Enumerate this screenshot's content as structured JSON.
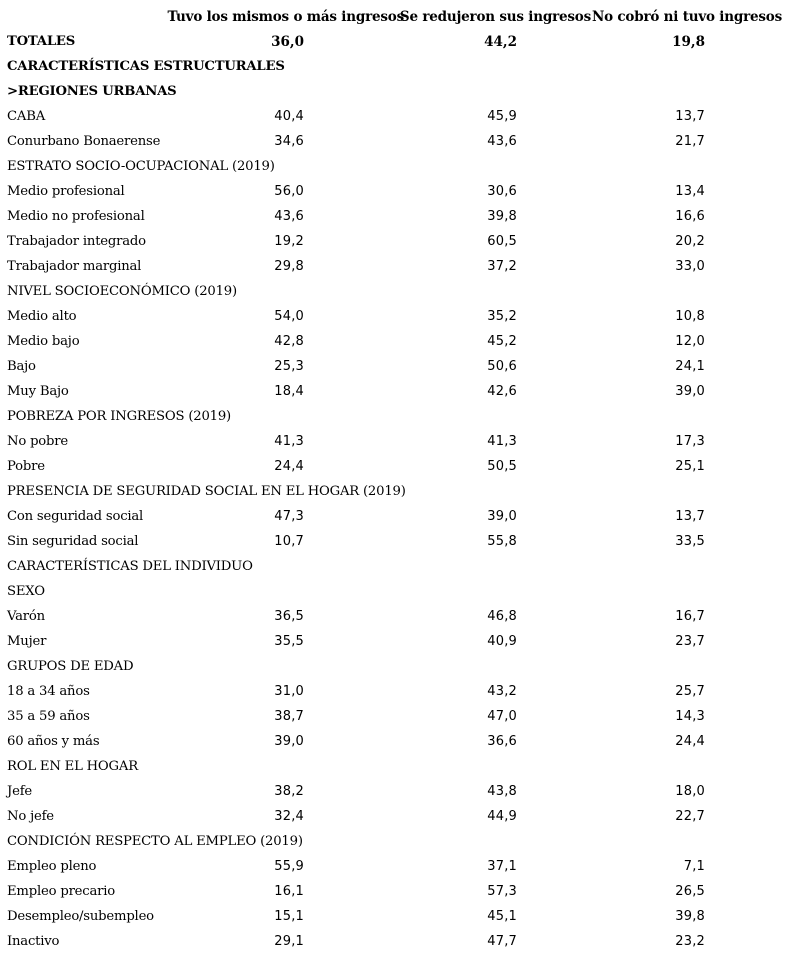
{
  "table": {
    "columns": [
      "Tuvo los mismos o más ingresos",
      "Se redujeron sus ingresos",
      "No cobró ni tuvo ingresos"
    ],
    "rows": [
      {
        "label": "TOTALES",
        "type": "total",
        "values": [
          "36,0",
          "44,2",
          "19,8"
        ]
      },
      {
        "label": "CARACTERÍSTICAS ESTRUCTURALES",
        "type": "section",
        "values": [
          "",
          "",
          ""
        ]
      },
      {
        "label": ">REGIONES URBANAS",
        "type": "section",
        "values": [
          "",
          "",
          ""
        ]
      },
      {
        "label": "CABA",
        "type": "data",
        "values": [
          "40,4",
          "45,9",
          "13,7"
        ]
      },
      {
        "label": "Conurbano Bonaerense",
        "type": "data",
        "values": [
          "34,6",
          "43,6",
          "21,7"
        ]
      },
      {
        "label": "ESTRATO SOCIO-OCUPACIONAL (2019)",
        "type": "group",
        "values": [
          "",
          "",
          ""
        ]
      },
      {
        "label": "Medio profesional",
        "type": "data",
        "values": [
          "56,0",
          "30,6",
          "13,4"
        ]
      },
      {
        "label": "Medio no profesional",
        "type": "data",
        "values": [
          "43,6",
          "39,8",
          "16,6"
        ]
      },
      {
        "label": "Trabajador integrado",
        "type": "data",
        "values": [
          "19,2",
          "60,5",
          "20,2"
        ]
      },
      {
        "label": "Trabajador marginal",
        "type": "data",
        "values": [
          "29,8",
          "37,2",
          "33,0"
        ]
      },
      {
        "label": "NIVEL SOCIOECONÓMICO (2019)",
        "type": "group",
        "values": [
          "",
          "",
          ""
        ]
      },
      {
        "label": "Medio alto",
        "type": "data",
        "values": [
          "54,0",
          "35,2",
          "10,8"
        ]
      },
      {
        "label": "Medio bajo",
        "type": "data",
        "values": [
          "42,8",
          "45,2",
          "12,0"
        ]
      },
      {
        "label": "Bajo",
        "type": "data",
        "values": [
          "25,3",
          "50,6",
          "24,1"
        ]
      },
      {
        "label": "Muy Bajo",
        "type": "data",
        "values": [
          "18,4",
          "42,6",
          "39,0"
        ]
      },
      {
        "label": "POBREZA POR INGRESOS (2019)",
        "type": "group",
        "values": [
          "",
          "",
          ""
        ]
      },
      {
        "label": "No pobre",
        "type": "data",
        "values": [
          "41,3",
          "41,3",
          "17,3"
        ]
      },
      {
        "label": "Pobre",
        "type": "data",
        "values": [
          "24,4",
          "50,5",
          "25,1"
        ]
      },
      {
        "label": "PRESENCIA DE SEGURIDAD SOCIAL EN EL HOGAR (2019)",
        "type": "group",
        "values": [
          "",
          "",
          ""
        ]
      },
      {
        "label": "Con seguridad social",
        "type": "data",
        "values": [
          "47,3",
          "39,0",
          "13,7"
        ]
      },
      {
        "label": "Sin seguridad social",
        "type": "data",
        "values": [
          "10,7",
          "55,8",
          "33,5"
        ]
      },
      {
        "label": "CARACTERÍSTICAS DEL INDIVIDUO",
        "type": "group",
        "values": [
          "",
          "",
          ""
        ]
      },
      {
        "label": "SEXO",
        "type": "group",
        "values": [
          "",
          "",
          ""
        ]
      },
      {
        "label": "Varón",
        "type": "data",
        "values": [
          "36,5",
          "46,8",
          "16,7"
        ]
      },
      {
        "label": "Mujer",
        "type": "data",
        "values": [
          "35,5",
          "40,9",
          "23,7"
        ]
      },
      {
        "label": "GRUPOS DE EDAD",
        "type": "group",
        "values": [
          "",
          "",
          ""
        ]
      },
      {
        "label": "18 a 34 años",
        "type": "data",
        "values": [
          "31,0",
          "43,2",
          "25,7"
        ]
      },
      {
        "label": "35 a 59 años",
        "type": "data",
        "values": [
          "38,7",
          "47,0",
          "14,3"
        ]
      },
      {
        "label": "60 años y más",
        "type": "data",
        "values": [
          "39,0",
          "36,6",
          "24,4"
        ]
      },
      {
        "label": "ROL EN EL HOGAR",
        "type": "group",
        "values": [
          "",
          "",
          ""
        ]
      },
      {
        "label": "Jefe",
        "type": "data",
        "values": [
          "38,2",
          "43,8",
          "18,0"
        ]
      },
      {
        "label": "No jefe",
        "type": "data",
        "values": [
          "32,4",
          "44,9",
          "22,7"
        ]
      },
      {
        "label": "CONDICIÓN RESPECTO AL EMPLEO (2019)",
        "type": "group",
        "values": [
          "",
          "",
          ""
        ]
      },
      {
        "label": "Empleo pleno",
        "type": "data",
        "values": [
          "55,9",
          "37,1",
          "7,1"
        ]
      },
      {
        "label": "Empleo precario",
        "type": "data",
        "values": [
          "16,1",
          "57,3",
          "26,5"
        ]
      },
      {
        "label": "Desempleo/subempleo",
        "type": "data",
        "values": [
          "15,1",
          "45,1",
          "39,8"
        ]
      },
      {
        "label": "Inactivo",
        "type": "data",
        "values": [
          "29,1",
          "47,7",
          "23,2"
        ]
      }
    ]
  }
}
